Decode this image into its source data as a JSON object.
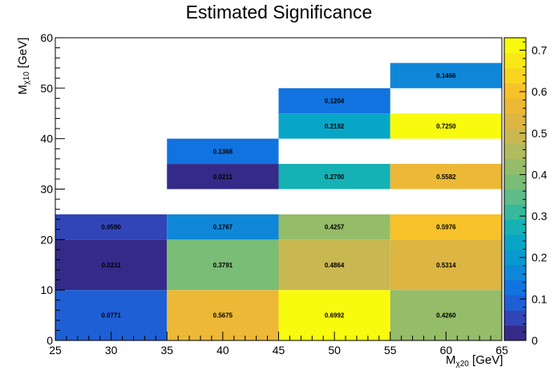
{
  "chart_data": {
    "type": "heatmap",
    "title": "Estimated Significance",
    "xlabel": {
      "main": "M",
      "sub": "χ20",
      "unit": " [GeV]"
    },
    "ylabel": {
      "main": "M",
      "sub": "χ10",
      "unit": " [GeV]"
    },
    "xlim": [
      25,
      65
    ],
    "ylim": [
      0,
      60
    ],
    "zlim": [
      0,
      0.73
    ],
    "x_ticks": [
      "25",
      "30",
      "35",
      "40",
      "45",
      "50",
      "55",
      "60",
      "65"
    ],
    "y_ticks": [
      "0",
      "10",
      "20",
      "30",
      "40",
      "50",
      "60"
    ],
    "z_ticks": [
      "0",
      "0.1",
      "0.2",
      "0.3",
      "0.4",
      "0.5",
      "0.6",
      "0.7"
    ],
    "cells": [
      {
        "x0": 25,
        "x1": 35,
        "y0": 0,
        "y1": 10,
        "value": 0.0771,
        "label": "0.0771"
      },
      {
        "x0": 35,
        "x1": 45,
        "y0": 0,
        "y1": 10,
        "value": 0.5675,
        "label": "0.5675"
      },
      {
        "x0": 45,
        "x1": 55,
        "y0": 0,
        "y1": 10,
        "value": 0.6992,
        "label": "0.6992"
      },
      {
        "x0": 55,
        "x1": 65,
        "y0": 0,
        "y1": 10,
        "value": 0.426,
        "label": "0.4260"
      },
      {
        "x0": 25,
        "x1": 35,
        "y0": 10,
        "y1": 20,
        "value": 0.0211,
        "label": "0.0211"
      },
      {
        "x0": 35,
        "x1": 45,
        "y0": 10,
        "y1": 20,
        "value": 0.3791,
        "label": "0.3791"
      },
      {
        "x0": 45,
        "x1": 55,
        "y0": 10,
        "y1": 20,
        "value": 0.4864,
        "label": "0.4864"
      },
      {
        "x0": 55,
        "x1": 65,
        "y0": 10,
        "y1": 20,
        "value": 0.5314,
        "label": "0.5314"
      },
      {
        "x0": 25,
        "x1": 35,
        "y0": 20,
        "y1": 25,
        "value": 0.059,
        "label": "0.0590"
      },
      {
        "x0": 35,
        "x1": 45,
        "y0": 20,
        "y1": 25,
        "value": 0.1767,
        "label": "0.1767"
      },
      {
        "x0": 45,
        "x1": 55,
        "y0": 20,
        "y1": 25,
        "value": 0.4257,
        "label": "0.4257"
      },
      {
        "x0": 55,
        "x1": 65,
        "y0": 20,
        "y1": 25,
        "value": 0.5976,
        "label": "0.5976"
      },
      {
        "x0": 35,
        "x1": 45,
        "y0": 30,
        "y1": 35,
        "value": 0.0211,
        "label": "0.0211"
      },
      {
        "x0": 45,
        "x1": 55,
        "y0": 30,
        "y1": 35,
        "value": 0.27,
        "label": "0.2700"
      },
      {
        "x0": 55,
        "x1": 65,
        "y0": 30,
        "y1": 35,
        "value": 0.5582,
        "label": "0.5582"
      },
      {
        "x0": 35,
        "x1": 45,
        "y0": 35,
        "y1": 40,
        "value": 0.1368,
        "label": "0.1368"
      },
      {
        "x0": 45,
        "x1": 55,
        "y0": 40,
        "y1": 45,
        "value": 0.2192,
        "label": "0.2192"
      },
      {
        "x0": 55,
        "x1": 65,
        "y0": 40,
        "y1": 45,
        "value": 0.725,
        "label": "0.7250"
      },
      {
        "x0": 45,
        "x1": 55,
        "y0": 45,
        "y1": 50,
        "value": 0.1204,
        "label": "0.1204"
      },
      {
        "x0": 55,
        "x1": 65,
        "y0": 50,
        "y1": 55,
        "value": 0.1466,
        "label": "0.1466"
      }
    ],
    "palette": [
      "#352a87",
      "#3145b8",
      "#1e5fd6",
      "#1173e0",
      "#0f87d9",
      "#0a98d0",
      "#08a6c6",
      "#15b1b4",
      "#37b89d",
      "#5dbc87",
      "#7abd76",
      "#95bc69",
      "#b0bb5d",
      "#c9b851",
      "#dcb543",
      "#ecb836",
      "#f7c22a",
      "#f9d51f",
      "#f8e816",
      "#f9fb0e"
    ],
    "grid": false
  }
}
